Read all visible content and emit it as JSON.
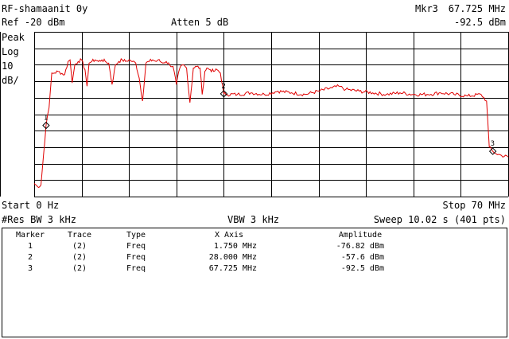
{
  "header": {
    "title": "RF-shamaanit 0y",
    "ref_level": "Ref -20 dBm",
    "attenuation": "Atten 5 dB",
    "marker_readout_name": "Mkr3",
    "marker_readout_freq": "67.725 MHz",
    "marker_readout_amp": "-92.5 dBm"
  },
  "scale": {
    "mode": "Peak",
    "type": "Log",
    "per_div_value": "10",
    "per_div_unit": "dB/"
  },
  "footer": {
    "start": "Start 0 Hz",
    "stop": "Stop 70 MHz",
    "rbw": "#Res BW 3 kHz",
    "vbw": "VBW 3 kHz",
    "sweep": "Sweep 10.02 s (401 pts)"
  },
  "trace_color": "#e00000",
  "chart_data": {
    "type": "line",
    "x_unit": "MHz",
    "y_unit": "dBm",
    "xlim": [
      0,
      70
    ],
    "ylim": [
      -120,
      -20
    ],
    "grid": true,
    "series": [
      {
        "x": [
          0,
          0.5,
          1.0,
          1.75,
          2.2,
          2.6,
          3.0,
          3.5,
          4.5,
          5.0,
          5.3,
          5.6,
          6.0,
          6.5,
          7.0,
          7.5,
          7.8,
          8.1,
          8.5,
          9.0,
          9.5,
          10.0,
          10.5,
          11.0,
          11.5,
          12.0,
          12.5,
          13.0,
          13.5,
          14.0,
          14.5,
          15.0,
          15.5,
          16.0,
          16.5,
          17.0,
          17.5,
          18.0,
          18.3,
          18.6,
          19.0,
          19.5,
          20.0,
          20.5,
          21.0,
          21.5,
          22.0,
          22.5,
          23.0,
          23.5,
          24.0,
          24.5,
          24.8,
          25.2,
          25.5,
          26.0,
          26.5,
          27.0,
          27.5,
          28.0,
          28.5,
          30,
          32,
          34,
          36,
          38,
          40,
          42,
          44,
          45,
          46,
          48,
          50,
          52,
          54,
          56,
          58,
          60,
          62,
          64,
          66,
          66.8,
          67.2,
          67.725,
          68.2,
          69,
          70
        ],
        "y": [
          -112,
          -114,
          -113,
          -76.8,
          -66,
          -45,
          -45,
          -44,
          -46,
          -38,
          -37,
          -51,
          -40,
          -38,
          -37,
          -43,
          -53,
          -39,
          -38,
          -37,
          -38,
          -37,
          -38,
          -39,
          -52,
          -40,
          -38,
          -37,
          -38,
          -37,
          -38,
          -39,
          -48,
          -62,
          -39,
          -38,
          -37,
          -38,
          -37,
          -38,
          -39,
          -38,
          -40,
          -41,
          -52,
          -42,
          -40,
          -42,
          -63,
          -42,
          -41,
          -42,
          -58,
          -44,
          -42,
          -43,
          -44,
          -43,
          -45,
          -57.6,
          -58,
          -58,
          -57,
          -58,
          -56,
          -57,
          -58,
          -56,
          -54,
          -53,
          -55,
          -56,
          -57,
          -58,
          -57,
          -58,
          -58,
          -57,
          -58,
          -59,
          -58,
          -62,
          -90,
          -92.5,
          -94,
          -95,
          -96
        ]
      }
    ],
    "markers": [
      {
        "id": "1",
        "trace": "(2)",
        "type": "Freq",
        "x_axis": "1.750 MHz",
        "amplitude": "-76.82 dBm",
        "freq": 1.75,
        "amp": -76.82
      },
      {
        "id": "2",
        "trace": "(2)",
        "type": "Freq",
        "x_axis": "28.000 MHz",
        "amplitude": "-57.6 dBm",
        "freq": 28.0,
        "amp": -57.6
      },
      {
        "id": "3",
        "trace": "(2)",
        "type": "Freq",
        "x_axis": "67.725 MHz",
        "amplitude": "-92.5 dBm",
        "freq": 67.725,
        "amp": -92.5
      }
    ]
  },
  "marker_table": {
    "headers": {
      "marker": "Marker",
      "trace": "Trace",
      "type": "Type",
      "x_axis": "X Axis",
      "amplitude": "Amplitude"
    }
  }
}
